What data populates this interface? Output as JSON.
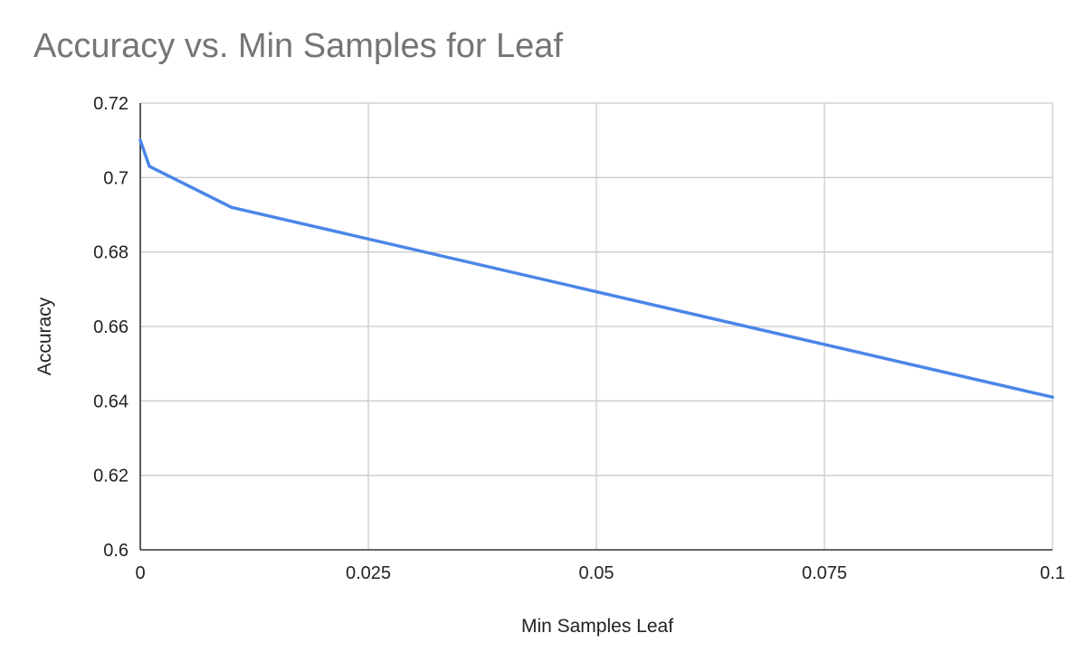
{
  "chart_data": {
    "type": "line",
    "title": "Accuracy vs. Min Samples for Leaf",
    "xlabel": "Min Samples Leaf",
    "ylabel": "Accuracy",
    "xlim": [
      0,
      0.1
    ],
    "ylim": [
      0.6,
      0.72
    ],
    "x_ticks": [
      "0",
      "0.025",
      "0.05",
      "0.075",
      "0.1"
    ],
    "y_ticks": [
      "0.6",
      "0.62",
      "0.64",
      "0.66",
      "0.68",
      "0.7",
      "0.72"
    ],
    "grid": true,
    "legend": "none",
    "series": [
      {
        "color": "#4a86e8",
        "points": [
          {
            "x": 0,
            "y": 0.71
          },
          {
            "x": 0.001,
            "y": 0.703
          },
          {
            "x": 0.01,
            "y": 0.692
          },
          {
            "x": 0.1,
            "y": 0.641
          }
        ]
      }
    ]
  }
}
